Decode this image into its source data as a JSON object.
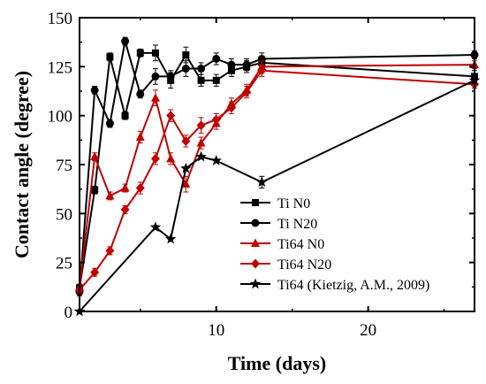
{
  "chart_data": {
    "type": "line",
    "xlabel": "Time (days)",
    "ylabel": "Contact angle (degree)",
    "xlim": [
      1,
      27
    ],
    "ylim": [
      0,
      150
    ],
    "xticks": [
      10,
      20
    ],
    "yticks": [
      0,
      25,
      50,
      75,
      100,
      125,
      150
    ],
    "legend_position": "bottom-right",
    "series": [
      {
        "name": "Ti N0",
        "color": "#000000",
        "marker": "square",
        "x": [
          1,
          2,
          3,
          4,
          5,
          6,
          7,
          8,
          9,
          10,
          11,
          12,
          13,
          27
        ],
        "y": [
          12,
          62,
          130,
          100,
          132,
          132,
          118,
          131,
          118,
          118,
          123,
          125,
          127,
          120
        ],
        "err": [
          2,
          2,
          2,
          2,
          2,
          4,
          4,
          4,
          3,
          3,
          3,
          3,
          3,
          3
        ]
      },
      {
        "name": "Ti N20",
        "color": "#000000",
        "marker": "circle",
        "x": [
          1,
          2,
          3,
          4,
          5,
          6,
          7,
          8,
          9,
          10,
          11,
          12,
          13,
          27
        ],
        "y": [
          10,
          113,
          96,
          138,
          111,
          120,
          120,
          124,
          124,
          129,
          126,
          126,
          129,
          131
        ],
        "err": [
          2,
          2,
          2,
          2,
          2,
          4,
          3,
          4,
          3,
          3,
          3,
          3,
          3,
          2
        ]
      },
      {
        "name": "Ti64 N0",
        "color": "#c00000",
        "marker": "triangle",
        "x": [
          1,
          2,
          3,
          4,
          5,
          6,
          7,
          8,
          9,
          10,
          11,
          12,
          13,
          27
        ],
        "y": [
          12,
          79,
          59,
          63,
          89,
          109,
          78,
          65,
          86,
          96,
          106,
          113,
          125,
          126
        ],
        "err": [
          2,
          2,
          2,
          2,
          3,
          4,
          3,
          4,
          3,
          3,
          3,
          3,
          3,
          2
        ]
      },
      {
        "name": "Ti64 N20",
        "color": "#c00000",
        "marker": "diamond",
        "x": [
          1,
          2,
          3,
          4,
          5,
          6,
          7,
          8,
          9,
          10,
          11,
          12,
          13,
          27
        ],
        "y": [
          11,
          20,
          31,
          52,
          63,
          78,
          100,
          87,
          95,
          98,
          104,
          112,
          123,
          116
        ],
        "err": [
          2,
          2,
          2,
          2,
          3,
          3,
          3,
          3,
          4,
          3,
          3,
          3,
          3,
          2
        ]
      },
      {
        "name": "Ti64 (Kietzig, A.M., 2009)",
        "color": "#000000",
        "marker": "star",
        "x": [
          1,
          6,
          7,
          8,
          9,
          10,
          13,
          27
        ],
        "y": [
          0,
          43,
          37,
          73,
          79,
          77,
          66,
          118
        ],
        "err": [
          0,
          0,
          0,
          0,
          0,
          0,
          3,
          0
        ]
      }
    ]
  }
}
